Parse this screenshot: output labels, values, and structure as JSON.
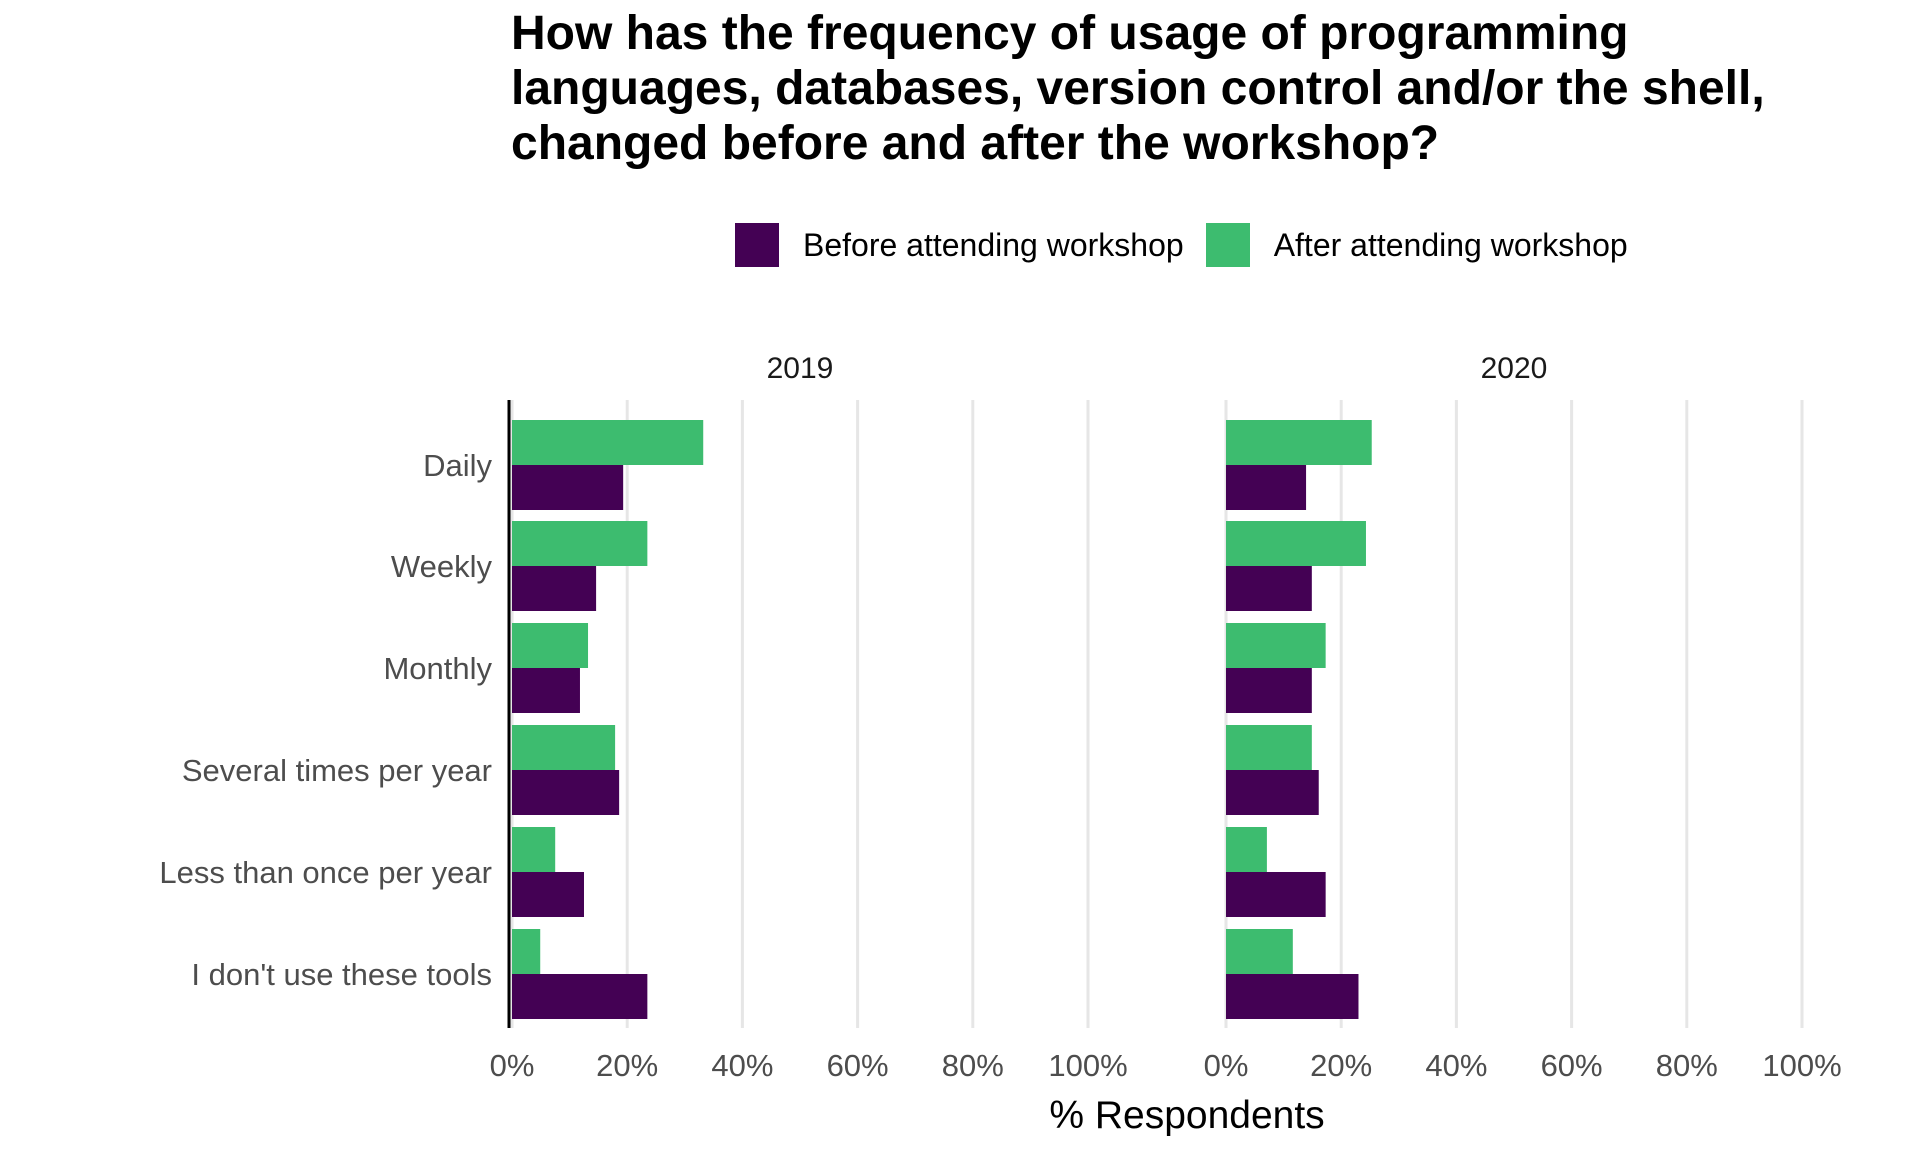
{
  "chart_data": {
    "type": "bar",
    "orientation": "horizontal",
    "title_lines": [
      "How has the frequency of usage of programming",
      "languages, databases, version control and/or the shell,",
      "changed before and after the workshop?"
    ],
    "xlabel": "% Respondents",
    "ylabel": "",
    "xlim": [
      0,
      100
    ],
    "x_ticks": [
      "0%",
      "20%",
      "40%",
      "60%",
      "80%",
      "100%"
    ],
    "legend_position": "top",
    "grid": true,
    "categories": [
      "Daily",
      "Weekly",
      "Monthly",
      "Several times per year",
      "Less than once per year",
      "I don't use these tools"
    ],
    "series": [
      {
        "name": "Before attending workshop",
        "color": "#440154"
      },
      {
        "name": "After attending workshop",
        "color": "#3dbc6f"
      }
    ],
    "panels": [
      {
        "label": "2019",
        "values": {
          "Before attending workshop": [
            19.3,
            14.6,
            11.8,
            18.6,
            12.5,
            23.5
          ],
          "After attending workshop": [
            33.2,
            23.5,
            13.2,
            17.9,
            7.5,
            4.9
          ]
        }
      },
      {
        "label": "2020",
        "values": {
          "Before attending workshop": [
            13.9,
            14.9,
            14.9,
            16.1,
            17.3,
            23.0
          ],
          "After attending workshop": [
            25.3,
            24.3,
            17.3,
            14.9,
            7.1,
            11.6
          ]
        }
      }
    ]
  }
}
